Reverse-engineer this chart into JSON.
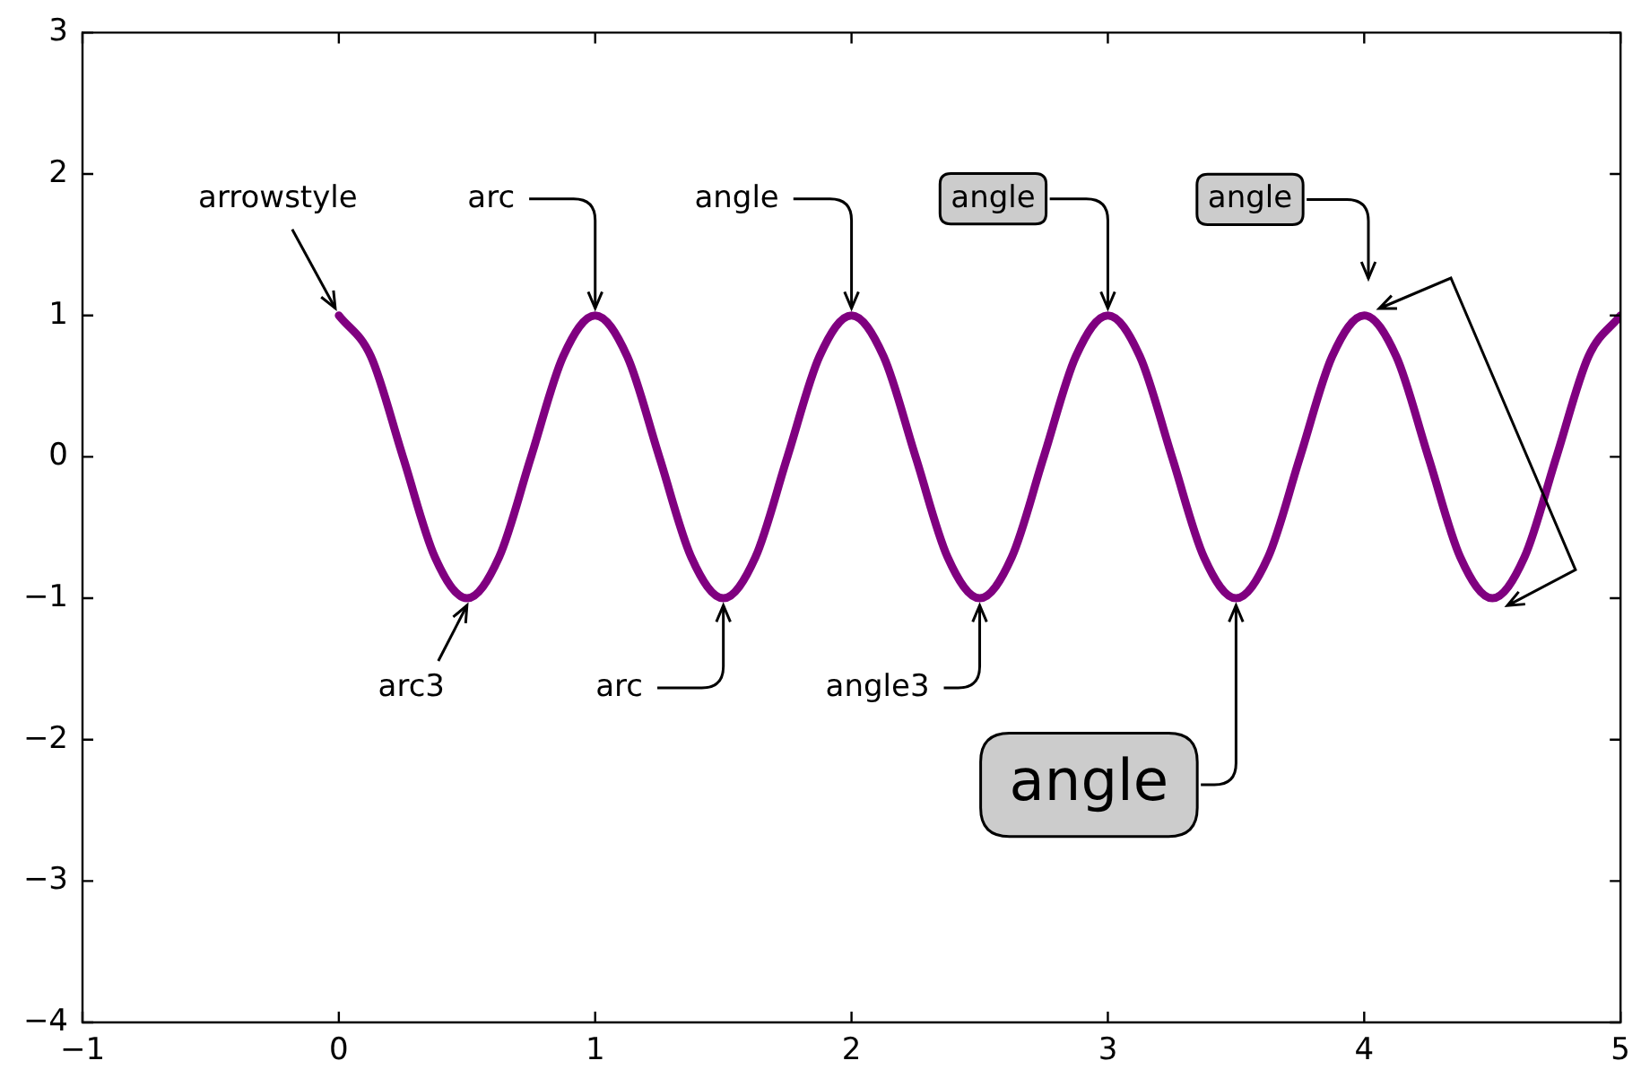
{
  "chart_data": {
    "type": "line",
    "x": [
      0,
      0.125,
      0.25,
      0.375,
      0.5,
      0.625,
      0.75,
      0.875,
      1,
      1.125,
      1.25,
      1.375,
      1.5,
      1.625,
      1.75,
      1.875,
      2,
      2.125,
      2.25,
      2.375,
      2.5,
      2.625,
      2.75,
      2.875,
      3,
      3.125,
      3.25,
      3.375,
      3.5,
      3.625,
      3.75,
      3.875,
      4,
      4.125,
      4.25,
      4.375,
      4.5,
      4.625,
      4.75,
      4.875,
      5
    ],
    "series": [
      {
        "color": "#800080",
        "values": [
          1,
          0.71,
          0,
          -0.71,
          -1,
          -0.71,
          0,
          0.71,
          1,
          0.71,
          0,
          -0.71,
          -1,
          -0.71,
          0,
          0.71,
          1,
          0.71,
          0,
          -0.71,
          -1,
          -0.71,
          0,
          0.71,
          1,
          0.71,
          0,
          -0.71,
          -1,
          -0.71,
          0,
          0.71,
          1,
          0.71,
          0,
          -0.71,
          -1,
          -0.71,
          0,
          0.71,
          1
        ]
      }
    ],
    "xlim": [
      -1,
      5
    ],
    "ylim": [
      -4,
      3
    ],
    "xticks": [
      {
        "value": -1,
        "label": "−1"
      },
      0,
      1,
      2,
      3,
      4,
      5
    ],
    "yticks": [
      {
        "value": -4,
        "label": "−4"
      },
      {
        "value": -3,
        "label": "−3"
      },
      {
        "value": -2,
        "label": "−2"
      },
      {
        "value": -1,
        "label": "−1"
      },
      0,
      1,
      2,
      3
    ],
    "grid": false,
    "legend": false,
    "marker": "none",
    "line_style": "solid",
    "annotations": [
      {
        "text": "arrowstyle",
        "x": 0,
        "y": 1
      },
      {
        "text": "arc",
        "x": 1,
        "y": 1
      },
      {
        "text": "angle",
        "x": 2,
        "y": 1
      },
      {
        "text": "angle",
        "x": 3,
        "y": 1
      },
      "angle",
      {
        "text": "arc3",
        "x": 0.5,
        "y": -1
      },
      {
        "text": "arc",
        "x": 1.5,
        "y": -1
      },
      {
        "text": "angle3",
        "x": 2.5,
        "y": -1
      },
      {
        "text": "angle",
        "x": 3.5,
        "y": -1
      }
    ]
  }
}
